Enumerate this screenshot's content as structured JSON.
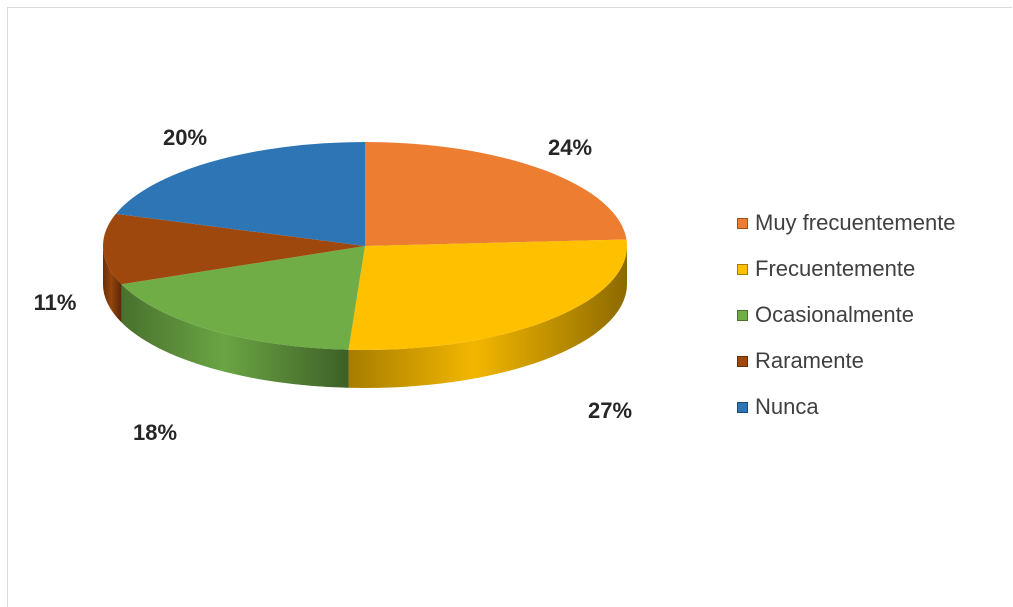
{
  "chart_data": {
    "type": "pie",
    "title": "",
    "categories": [
      "Muy frecuentemente",
      "Frecuentemente",
      "Ocasionalmente",
      "Raramente",
      "Nunca"
    ],
    "values": [
      24,
      27,
      18,
      11,
      20
    ],
    "labels": [
      "24%",
      "27%",
      "18%",
      "11%",
      "20%"
    ],
    "colors": [
      "#ED7D31",
      "#FFC000",
      "#70AD47",
      "#9E480E",
      "#2E75B6"
    ],
    "style": "3d",
    "legend_position": "right"
  }
}
